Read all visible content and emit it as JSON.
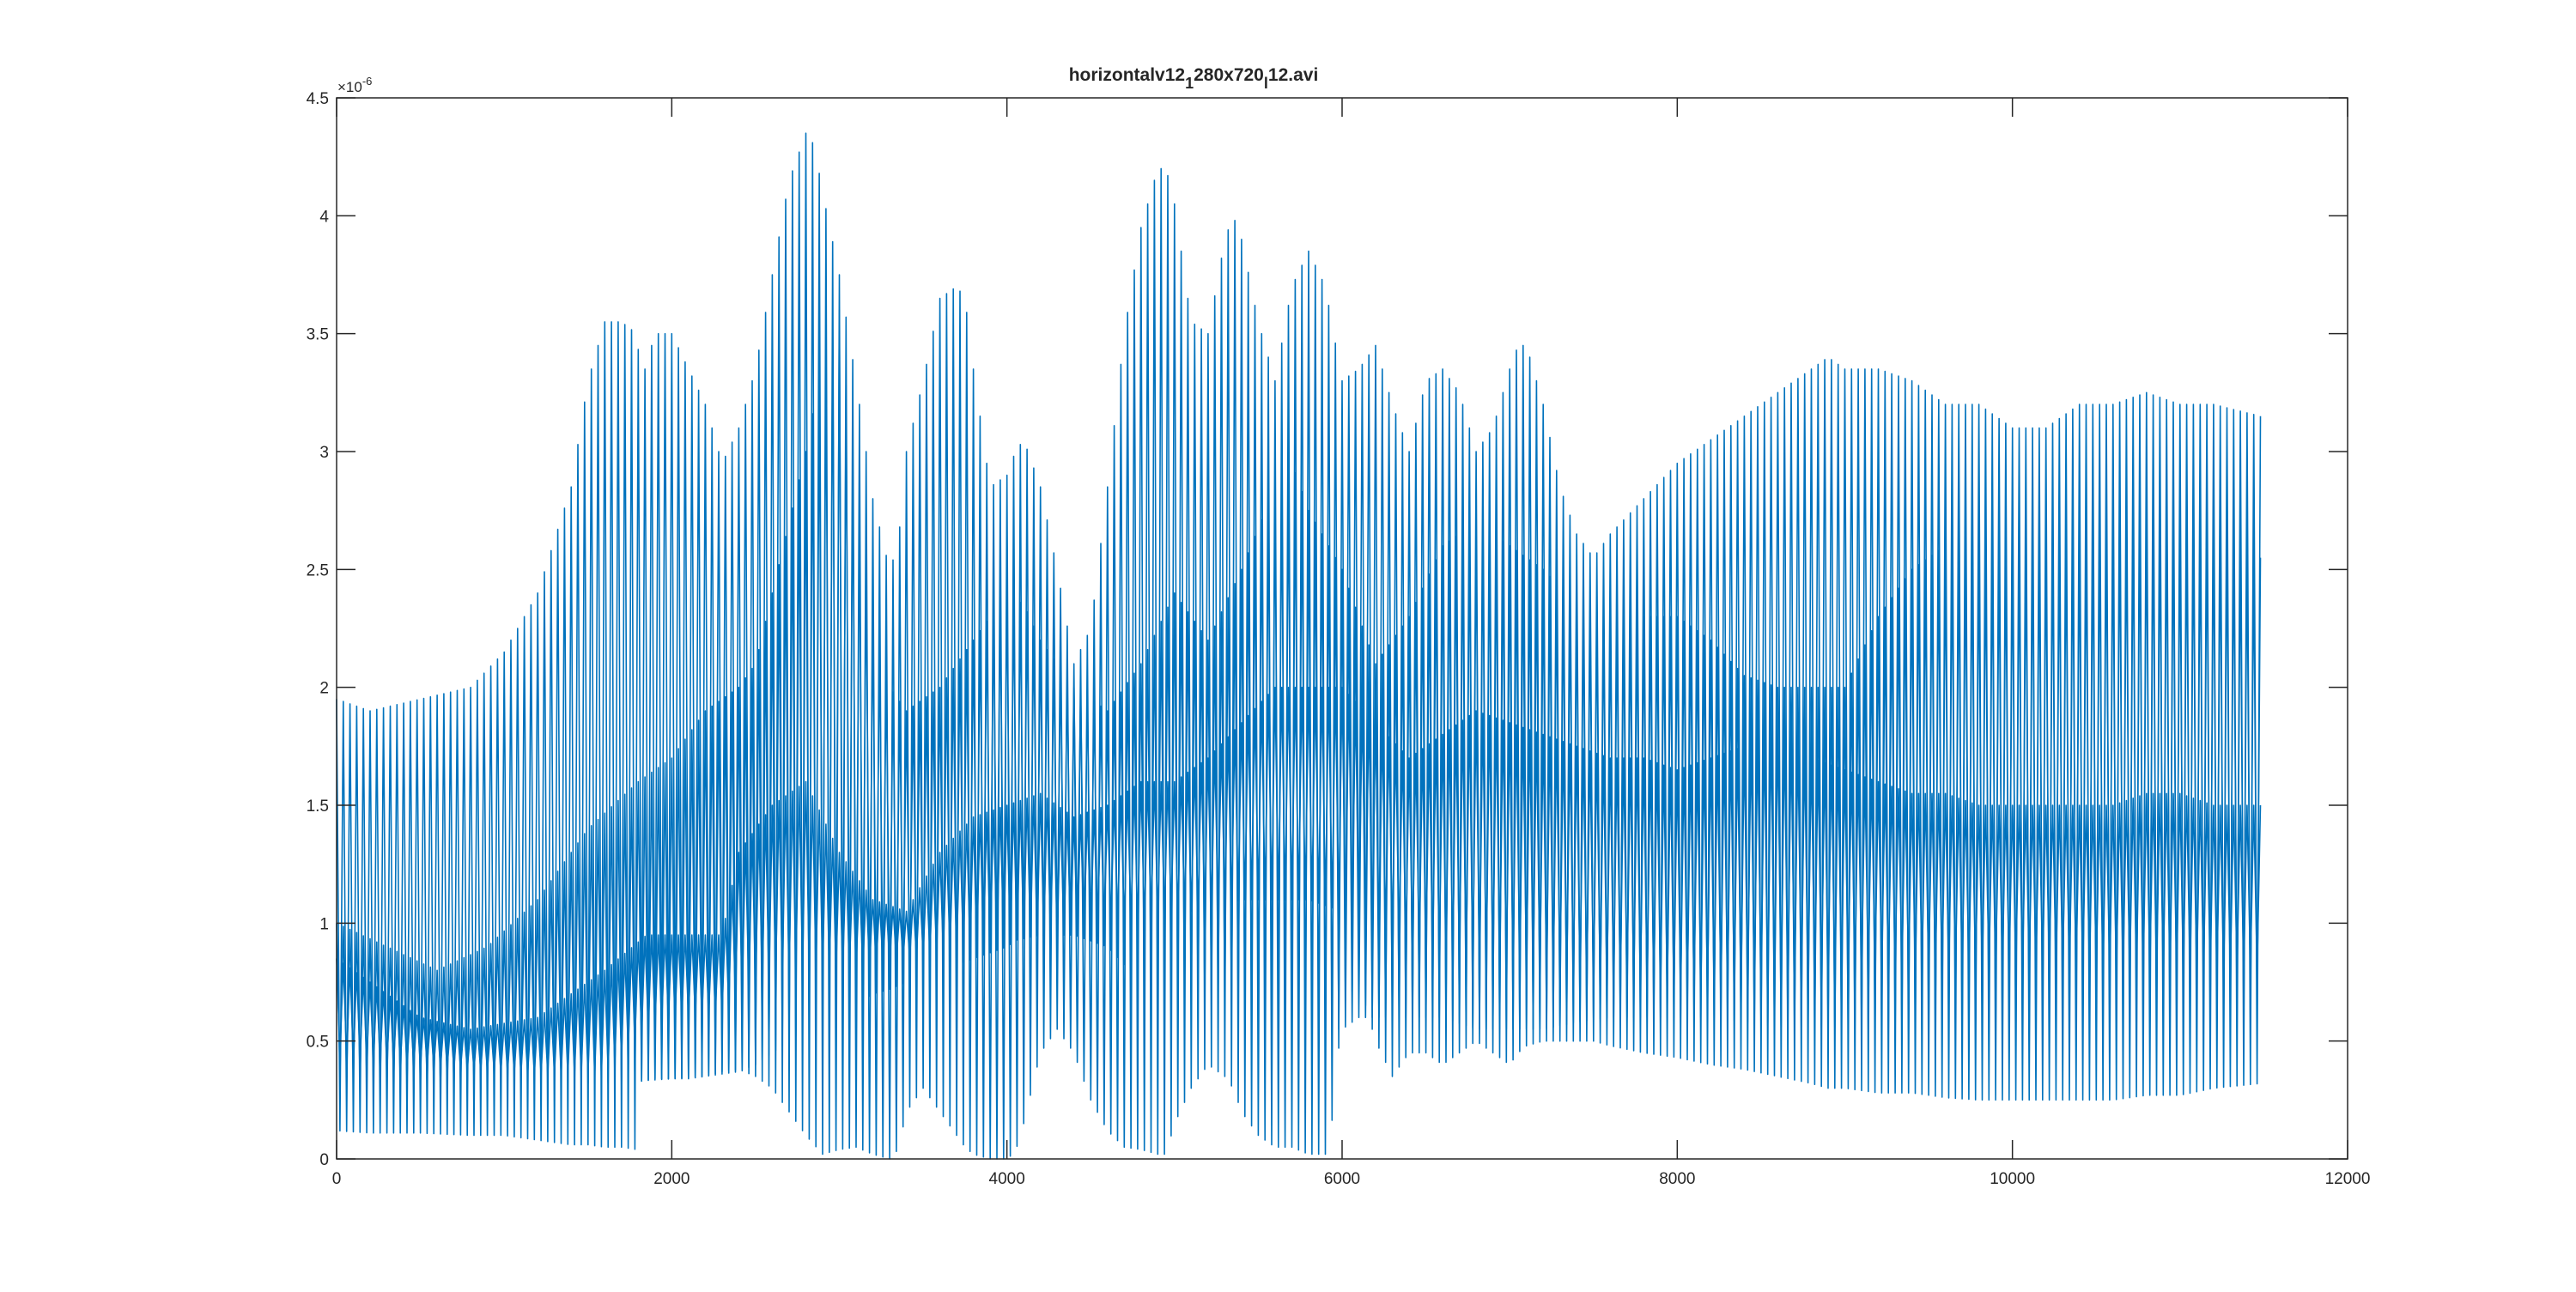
{
  "figure": {
    "background": "#ffffff",
    "axes_color": "#262626",
    "line_color": "#0072BD"
  },
  "chart_data": {
    "type": "line",
    "title": {
      "parts": [
        {
          "text": "horizontalv12",
          "sub": false
        },
        {
          "text": "1",
          "sub": true
        },
        {
          "text": "280x720",
          "sub": false
        },
        {
          "text": "l",
          "sub": true
        },
        {
          "text": "12.avi",
          "sub": false
        }
      ]
    },
    "xlabel": "",
    "ylabel": "",
    "xlim": [
      0,
      12000
    ],
    "ylim": [
      0,
      4.5
    ],
    "y_exponent_label": "×10",
    "y_exponent_power": "-6",
    "x_ticks": [
      {
        "value": 0,
        "label": "0"
      },
      {
        "value": 2000,
        "label": "2000"
      },
      {
        "value": 4000,
        "label": "4000"
      },
      {
        "value": 6000,
        "label": "6000"
      },
      {
        "value": 8000,
        "label": "8000"
      },
      {
        "value": 10000,
        "label": "10000"
      },
      {
        "value": 12000,
        "label": "12000"
      }
    ],
    "y_ticks": [
      {
        "value": 0,
        "label": "0"
      },
      {
        "value": 0.5,
        "label": "0.5"
      },
      {
        "value": 1,
        "label": "1"
      },
      {
        "value": 1.5,
        "label": "1.5"
      },
      {
        "value": 2,
        "label": "2"
      },
      {
        "value": 2.5,
        "label": "2.5"
      },
      {
        "value": 3,
        "label": "3"
      },
      {
        "value": 3.5,
        "label": "3.5"
      },
      {
        "value": 4,
        "label": "4"
      },
      {
        "value": 4.5,
        "label": "4.5"
      }
    ],
    "grid": false,
    "legend": "none",
    "x_range": [
      0,
      11480
    ],
    "sample_interval": 40,
    "series": [
      {
        "envelope": {
          "x": [
            0,
            200,
            500,
            800,
            1000,
            1200,
            1400,
            1500,
            1600,
            1700,
            1790,
            1820,
            1900,
            2000,
            2100,
            2200,
            2300,
            2400,
            2500,
            2600,
            2700,
            2800,
            2850,
            2900,
            3000,
            3100,
            3200,
            3300,
            3350,
            3400,
            3500,
            3600,
            3700,
            3750,
            3800,
            3900,
            4000,
            4050,
            4100,
            4200,
            4300,
            4400,
            4500,
            4600,
            4700,
            4800,
            4900,
            4950,
            5000,
            5100,
            5200,
            5300,
            5350,
            5400,
            5500,
            5600,
            5700,
            5800,
            5900,
            5950,
            6000,
            6100,
            6200,
            6300,
            6400,
            6500,
            6600,
            6700,
            6800,
            6900,
            7000,
            7050,
            7100,
            7200,
            7300,
            7400,
            7500,
            7600,
            7800,
            8000,
            8200,
            8400,
            8600,
            8800,
            8900,
            9000,
            9200,
            9400,
            9600,
            9800,
            10000,
            10200,
            10400,
            10600,
            10800,
            11000,
            11200,
            11480
          ],
          "upper": [
            1.95,
            1.9,
            1.95,
            2.0,
            2.15,
            2.4,
            2.85,
            3.3,
            3.55,
            3.55,
            3.5,
            3.3,
            3.5,
            3.5,
            3.35,
            3.2,
            2.95,
            3.1,
            3.35,
            3.75,
            4.15,
            4.35,
            4.3,
            4.1,
            3.75,
            3.3,
            2.8,
            2.5,
            2.6,
            3.0,
            3.3,
            3.65,
            3.7,
            3.65,
            3.35,
            2.85,
            2.9,
            3.0,
            3.05,
            2.85,
            2.5,
            2.1,
            2.25,
            2.85,
            3.5,
            3.95,
            4.2,
            4.2,
            4.05,
            3.55,
            3.5,
            3.9,
            4.0,
            3.9,
            3.55,
            3.3,
            3.7,
            3.85,
            3.7,
            3.5,
            3.3,
            3.35,
            3.45,
            3.2,
            3.0,
            3.3,
            3.35,
            3.25,
            3.0,
            3.1,
            3.35,
            3.45,
            3.45,
            3.2,
            2.85,
            2.65,
            2.55,
            2.65,
            2.8,
            2.95,
            3.05,
            3.15,
            3.25,
            3.35,
            3.4,
            3.35,
            3.35,
            3.3,
            3.2,
            3.2,
            3.1,
            3.1,
            3.2,
            3.2,
            3.25,
            3.2,
            3.2,
            3.15
          ],
          "lower": [
            0.12,
            0.11,
            0.11,
            0.1,
            0.1,
            0.08,
            0.06,
            0.06,
            0.05,
            0.05,
            0.04,
            0.33,
            0.34,
            0.34,
            0.34,
            0.35,
            0.37,
            0.38,
            0.35,
            0.3,
            0.2,
            0.1,
            0.06,
            0.02,
            0.04,
            0.05,
            0.02,
            0.0,
            0.04,
            0.2,
            0.3,
            0.2,
            0.1,
            0.05,
            0.02,
            0.0,
            0.0,
            0.03,
            0.15,
            0.45,
            0.55,
            0.45,
            0.25,
            0.12,
            0.05,
            0.04,
            0.02,
            0.02,
            0.15,
            0.3,
            0.4,
            0.35,
            0.3,
            0.2,
            0.1,
            0.05,
            0.05,
            0.02,
            0.02,
            0.2,
            0.65,
            0.75,
            0.5,
            0.35,
            0.45,
            0.45,
            0.4,
            0.45,
            0.5,
            0.45,
            0.4,
            0.45,
            0.48,
            0.5,
            0.5,
            0.5,
            0.5,
            0.48,
            0.45,
            0.43,
            0.4,
            0.38,
            0.35,
            0.32,
            0.3,
            0.3,
            0.28,
            0.28,
            0.26,
            0.25,
            0.25,
            0.25,
            0.25,
            0.25,
            0.27,
            0.27,
            0.3,
            0.32
          ]
        }
      },
      {
        "envelope": {
          "x": [
            0,
            300,
            600,
            900,
            1200,
            1500,
            1800,
            2000,
            2200,
            2400,
            2500,
            2600,
            2700,
            2800,
            2900,
            3000,
            3100,
            3200,
            3300,
            3400,
            3600,
            3800,
            4000,
            4100,
            4200,
            4400,
            4600,
            4800,
            5000,
            5200,
            5400,
            5600,
            5700,
            5800,
            6000,
            6100,
            6200,
            6400,
            6600,
            6800,
            7000,
            7200,
            7400,
            7600,
            7800,
            8000,
            8200,
            8400,
            8600,
            8800,
            9000,
            9200,
            9400,
            9600,
            9800,
            10000,
            10200,
            10400,
            10600,
            10800,
            11000,
            11200,
            11480
          ],
          "upper": [
            1.0,
            0.9,
            0.8,
            0.9,
            1.1,
            1.4,
            1.6,
            1.7,
            1.9,
            2.0,
            2.1,
            2.4,
            2.7,
            3.0,
            3.4,
            3.6,
            2.8,
            2.3,
            2.0,
            1.9,
            2.0,
            2.2,
            2.4,
            2.35,
            2.2,
            2.0,
            1.9,
            2.1,
            2.4,
            2.2,
            2.5,
            2.85,
            2.95,
            2.75,
            2.5,
            2.3,
            2.1,
            2.3,
            2.6,
            2.7,
            2.6,
            2.5,
            2.35,
            2.3,
            2.3,
            2.3,
            2.2,
            2.05,
            2.0,
            2.0,
            2.0,
            2.3,
            2.5,
            2.6,
            2.6,
            2.6,
            2.65,
            2.65,
            2.7,
            2.75,
            2.7,
            2.7,
            2.55
          ],
          "lower": [
            0.35,
            0.33,
            0.32,
            0.33,
            0.33,
            0.32,
            0.33,
            0.34,
            0.35,
            0.37,
            0.4,
            0.45,
            0.5,
            0.55,
            0.55,
            0.6,
            0.65,
            0.7,
            0.72,
            0.75,
            0.8,
            0.85,
            0.9,
            0.95,
            0.95,
            0.95,
            0.9,
            0.75,
            0.7,
            0.7,
            0.65,
            0.6,
            0.55,
            0.55,
            0.55,
            0.6,
            0.6,
            0.6,
            0.6,
            0.55,
            0.55,
            0.55,
            0.58,
            0.6,
            0.6,
            0.6,
            0.6,
            0.58,
            0.56,
            0.56,
            0.55,
            0.55,
            0.54,
            0.55,
            0.55,
            0.56,
            0.57,
            0.58,
            0.6,
            0.6,
            0.6,
            0.6,
            0.6
          ]
        }
      },
      {
        "envelope": {
          "x": [
            0,
            200,
            500,
            800,
            1200,
            1600,
            1850,
            2000,
            2300,
            2400,
            2600,
            2800,
            3000,
            3200,
            3400,
            3600,
            3800,
            4000,
            4200,
            4400,
            4600,
            4800,
            5000,
            5200,
            5400,
            5600,
            5800,
            6000,
            6200,
            6400,
            6600,
            6800,
            7000,
            7200,
            7400,
            7600,
            7800,
            8000,
            8200,
            8400,
            8600,
            8800,
            9000,
            9200,
            9400,
            9600,
            9800,
            10000,
            10200,
            10400,
            10600,
            10800,
            11000,
            11200,
            11480
          ],
          "upper": [
            0.85,
            0.75,
            0.6,
            0.55,
            0.6,
            0.8,
            0.95,
            0.95,
            0.95,
            1.3,
            1.5,
            1.6,
            1.3,
            1.1,
            1.05,
            1.3,
            1.45,
            1.5,
            1.55,
            1.45,
            1.5,
            1.6,
            1.6,
            1.7,
            1.85,
            2.0,
            2.0,
            2.0,
            1.85,
            1.7,
            1.8,
            1.9,
            1.85,
            1.8,
            1.75,
            1.7,
            1.7,
            1.65,
            1.7,
            1.75,
            1.8,
            1.7,
            1.65,
            1.6,
            1.55,
            1.55,
            1.5,
            1.5,
            1.5,
            1.5,
            1.5,
            1.55,
            1.55,
            1.5,
            1.5
          ],
          "lower": [
            0.45,
            0.42,
            0.4,
            0.38,
            0.36,
            0.36,
            0.55,
            0.6,
            0.62,
            0.7,
            0.75,
            0.8,
            0.8,
            0.82,
            0.85,
            0.88,
            0.9,
            0.92,
            0.95,
            0.95,
            1.0,
            1.0,
            1.05,
            1.05,
            1.1,
            1.1,
            1.1,
            1.05,
            1.0,
            0.9,
            0.85,
            0.82,
            0.8,
            0.78,
            0.76,
            0.74,
            0.72,
            0.7,
            0.7,
            0.72,
            0.74,
            0.76,
            0.78,
            0.8,
            0.8,
            0.8,
            0.82,
            0.82,
            0.82,
            0.82,
            0.8,
            0.8,
            0.8,
            0.8,
            0.8
          ]
        }
      }
    ]
  }
}
